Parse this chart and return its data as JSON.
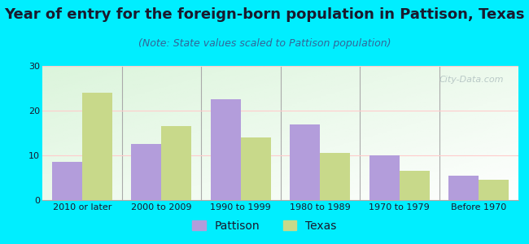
{
  "title": "Year of entry for the foreign-born population in Pattison, Texas",
  "subtitle": "(Note: State values scaled to Pattison population)",
  "categories": [
    "2010 or later",
    "2000 to 2009",
    "1990 to 1999",
    "1980 to 1989",
    "1970 to 1979",
    "Before 1970"
  ],
  "pattison_values": [
    8.5,
    12.5,
    22.5,
    17.0,
    10.0,
    5.5
  ],
  "texas_values": [
    24.0,
    16.5,
    14.0,
    10.5,
    6.5,
    4.5
  ],
  "pattison_color": "#b39ddb",
  "texas_color": "#c8d98a",
  "background_outer": "#00eeff",
  "ylim": [
    0,
    30
  ],
  "yticks": [
    0,
    10,
    20,
    30
  ],
  "bar_width": 0.38,
  "title_fontsize": 13,
  "subtitle_fontsize": 9,
  "legend_fontsize": 10,
  "tick_fontsize": 8,
  "watermark": "City-Data.com"
}
